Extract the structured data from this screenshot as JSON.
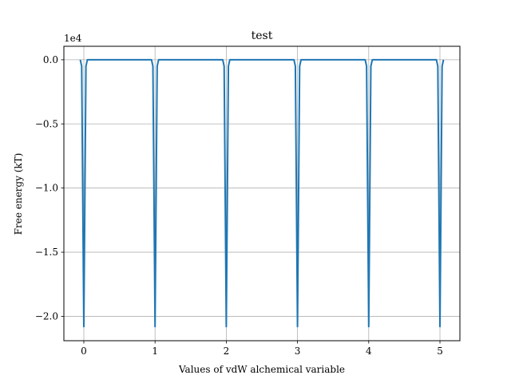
{
  "chart_data": {
    "type": "line",
    "title": "test",
    "xlabel": "Values of vdW alchemical variable",
    "ylabel": "Free energy (kT)",
    "y_offset_label": "1e4",
    "xlim": [
      -0.28,
      5.28
    ],
    "ylim": [
      -21900,
      1050
    ],
    "x_ticks": [
      0,
      1,
      2,
      3,
      4,
      5
    ],
    "x_tick_labels": [
      "0",
      "1",
      "2",
      "3",
      "4",
      "5"
    ],
    "y_ticks": [
      0,
      -5000,
      -10000,
      -15000,
      -20000
    ],
    "y_tick_labels": [
      "0.0",
      "−0.5",
      "−1.0",
      "−1.5",
      "−2.0"
    ],
    "grid": true,
    "line_color": "#1f77b4",
    "series": [
      {
        "x": [
          -0.05,
          -0.03,
          0.0,
          0.03,
          0.05,
          0.95,
          0.97,
          1.0,
          1.03,
          1.05,
          1.95,
          1.97,
          2.0,
          2.03,
          2.05,
          2.95,
          2.97,
          3.0,
          3.03,
          3.05,
          3.95,
          3.97,
          4.0,
          4.03,
          4.05,
          4.95,
          4.97,
          5.0,
          5.03,
          5.05
        ],
        "y": [
          0,
          -500,
          -20800,
          -500,
          0,
          0,
          -500,
          -20800,
          -500,
          0,
          0,
          -500,
          -20800,
          -500,
          0,
          0,
          -500,
          -20800,
          -500,
          0,
          0,
          -500,
          -20800,
          -500,
          0,
          0,
          -500,
          -20800,
          -500,
          0
        ]
      }
    ]
  }
}
